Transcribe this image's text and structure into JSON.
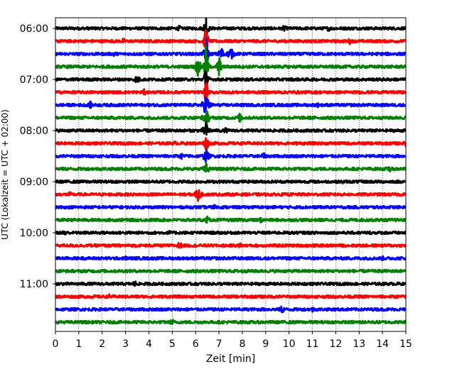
{
  "chart_data": {
    "type": "line",
    "title": "",
    "xlabel": "Zeit  [min]",
    "ylabel": "UTC (Lokalzeit = UTC + 02:00)",
    "xlim": [
      0,
      15
    ],
    "x_ticks": [
      "0",
      "1",
      "2",
      "3",
      "4",
      "5",
      "6",
      "7",
      "8",
      "9",
      "10",
      "11",
      "12",
      "13",
      "14",
      "15"
    ],
    "y_tick_labels": [
      "06:00",
      "07:00",
      "08:00",
      "09:00",
      "10:00",
      "11:00"
    ],
    "trace_interval_minutes": 15,
    "trace_start": "06:00",
    "trace_count": 24,
    "colors": [
      "#000000",
      "#ff0000",
      "#0000ff",
      "#008000"
    ],
    "grid": "vertical dotted",
    "series": [
      {
        "start": "06:00",
        "color": "#000000",
        "events": [
          {
            "t": 5.3,
            "amp": 0.5
          },
          {
            "t": 6.45,
            "amp": 3.5
          },
          {
            "t": 9.8,
            "amp": 0.6
          },
          {
            "t": 11.7,
            "amp": 0.5
          }
        ]
      },
      {
        "start": "06:15",
        "color": "#ff0000",
        "events": [
          {
            "t": 2.9,
            "amp": 0.5
          },
          {
            "t": 6.45,
            "amp": 3.5
          },
          {
            "t": 12.6,
            "amp": 0.5
          }
        ]
      },
      {
        "start": "06:30",
        "color": "#0000ff",
        "events": [
          {
            "t": 2.5,
            "amp": 0.5
          },
          {
            "t": 6.45,
            "amp": 3.5
          },
          {
            "t": 7.1,
            "amp": 1.2
          },
          {
            "t": 7.5,
            "amp": 1.2
          }
        ]
      },
      {
        "start": "06:45",
        "color": "#008000",
        "events": [
          {
            "t": 6.45,
            "amp": 4.5
          },
          {
            "t": 6.1,
            "amp": 1.5
          },
          {
            "t": 7.0,
            "amp": 2.5
          }
        ]
      },
      {
        "start": "07:00",
        "color": "#000000",
        "events": [
          {
            "t": 3.5,
            "amp": 0.8
          },
          {
            "t": 6.45,
            "amp": 3.5
          }
        ]
      },
      {
        "start": "07:15",
        "color": "#ff0000",
        "events": [
          {
            "t": 3.8,
            "amp": 0.5
          },
          {
            "t": 6.45,
            "amp": 2.5
          }
        ]
      },
      {
        "start": "07:30",
        "color": "#0000ff",
        "events": [
          {
            "t": 1.5,
            "amp": 0.6
          },
          {
            "t": 6.45,
            "amp": 2.0
          },
          {
            "t": 11.2,
            "amp": 0.5
          }
        ]
      },
      {
        "start": "07:45",
        "color": "#008000",
        "events": [
          {
            "t": 6.45,
            "amp": 1.5
          },
          {
            "t": 7.9,
            "amp": 0.8
          }
        ]
      },
      {
        "start": "08:00",
        "color": "#000000",
        "events": [
          {
            "t": 6.45,
            "amp": 1.5
          },
          {
            "t": 7.3,
            "amp": 0.5
          }
        ]
      },
      {
        "start": "08:15",
        "color": "#ff0000",
        "events": [
          {
            "t": 5.1,
            "amp": 0.4
          },
          {
            "t": 6.45,
            "amp": 1.2
          },
          {
            "t": 15.0,
            "amp": 0.6
          }
        ]
      },
      {
        "start": "08:30",
        "color": "#0000ff",
        "events": [
          {
            "t": 5.4,
            "amp": 0.5
          },
          {
            "t": 6.45,
            "amp": 1.2
          },
          {
            "t": 8.9,
            "amp": 0.6
          }
        ]
      },
      {
        "start": "08:45",
        "color": "#008000",
        "events": [
          {
            "t": 6.45,
            "amp": 1.0
          },
          {
            "t": 14.3,
            "amp": 0.6
          }
        ]
      },
      {
        "start": "09:00",
        "color": "#000000",
        "events": [
          {
            "t": 12.3,
            "amp": 0.4
          }
        ]
      },
      {
        "start": "09:15",
        "color": "#ff0000",
        "events": [
          {
            "t": 0.6,
            "amp": 0.5
          },
          {
            "t": 6.1,
            "amp": 1.2
          }
        ]
      },
      {
        "start": "09:30",
        "color": "#0000ff",
        "events": [
          {
            "t": 6.8,
            "amp": 0.5
          }
        ]
      },
      {
        "start": "09:45",
        "color": "#008000",
        "events": [
          {
            "t": 6.5,
            "amp": 0.6
          },
          {
            "t": 8.8,
            "amp": 0.5
          }
        ]
      },
      {
        "start": "10:00",
        "color": "#000000",
        "events": [
          {
            "t": 0.4,
            "amp": 0.6
          },
          {
            "t": 4.9,
            "amp": 0.4
          }
        ]
      },
      {
        "start": "10:15",
        "color": "#ff0000",
        "events": [
          {
            "t": 5.3,
            "amp": 0.7
          },
          {
            "t": 7.9,
            "amp": 0.5
          }
        ]
      },
      {
        "start": "10:30",
        "color": "#0000ff",
        "events": [
          {
            "t": 3.0,
            "amp": 0.4
          },
          {
            "t": 14.0,
            "amp": 0.4
          }
        ]
      },
      {
        "start": "10:45",
        "color": "#008000",
        "events": [
          {
            "t": 8.0,
            "amp": 0.4
          },
          {
            "t": 12.5,
            "amp": 0.4
          }
        ]
      },
      {
        "start": "11:00",
        "color": "#000000",
        "events": [
          {
            "t": 3.4,
            "amp": 0.6
          }
        ]
      },
      {
        "start": "11:15",
        "color": "#ff0000",
        "events": [
          {
            "t": 2.3,
            "amp": 0.4
          },
          {
            "t": 9.5,
            "amp": 0.4
          }
        ]
      },
      {
        "start": "11:30",
        "color": "#0000ff",
        "events": [
          {
            "t": 9.7,
            "amp": 0.7
          },
          {
            "t": 11.0,
            "amp": 0.5
          }
        ]
      },
      {
        "start": "11:45",
        "color": "#008000",
        "events": [
          {
            "t": 5.0,
            "amp": 0.6
          }
        ]
      }
    ]
  }
}
